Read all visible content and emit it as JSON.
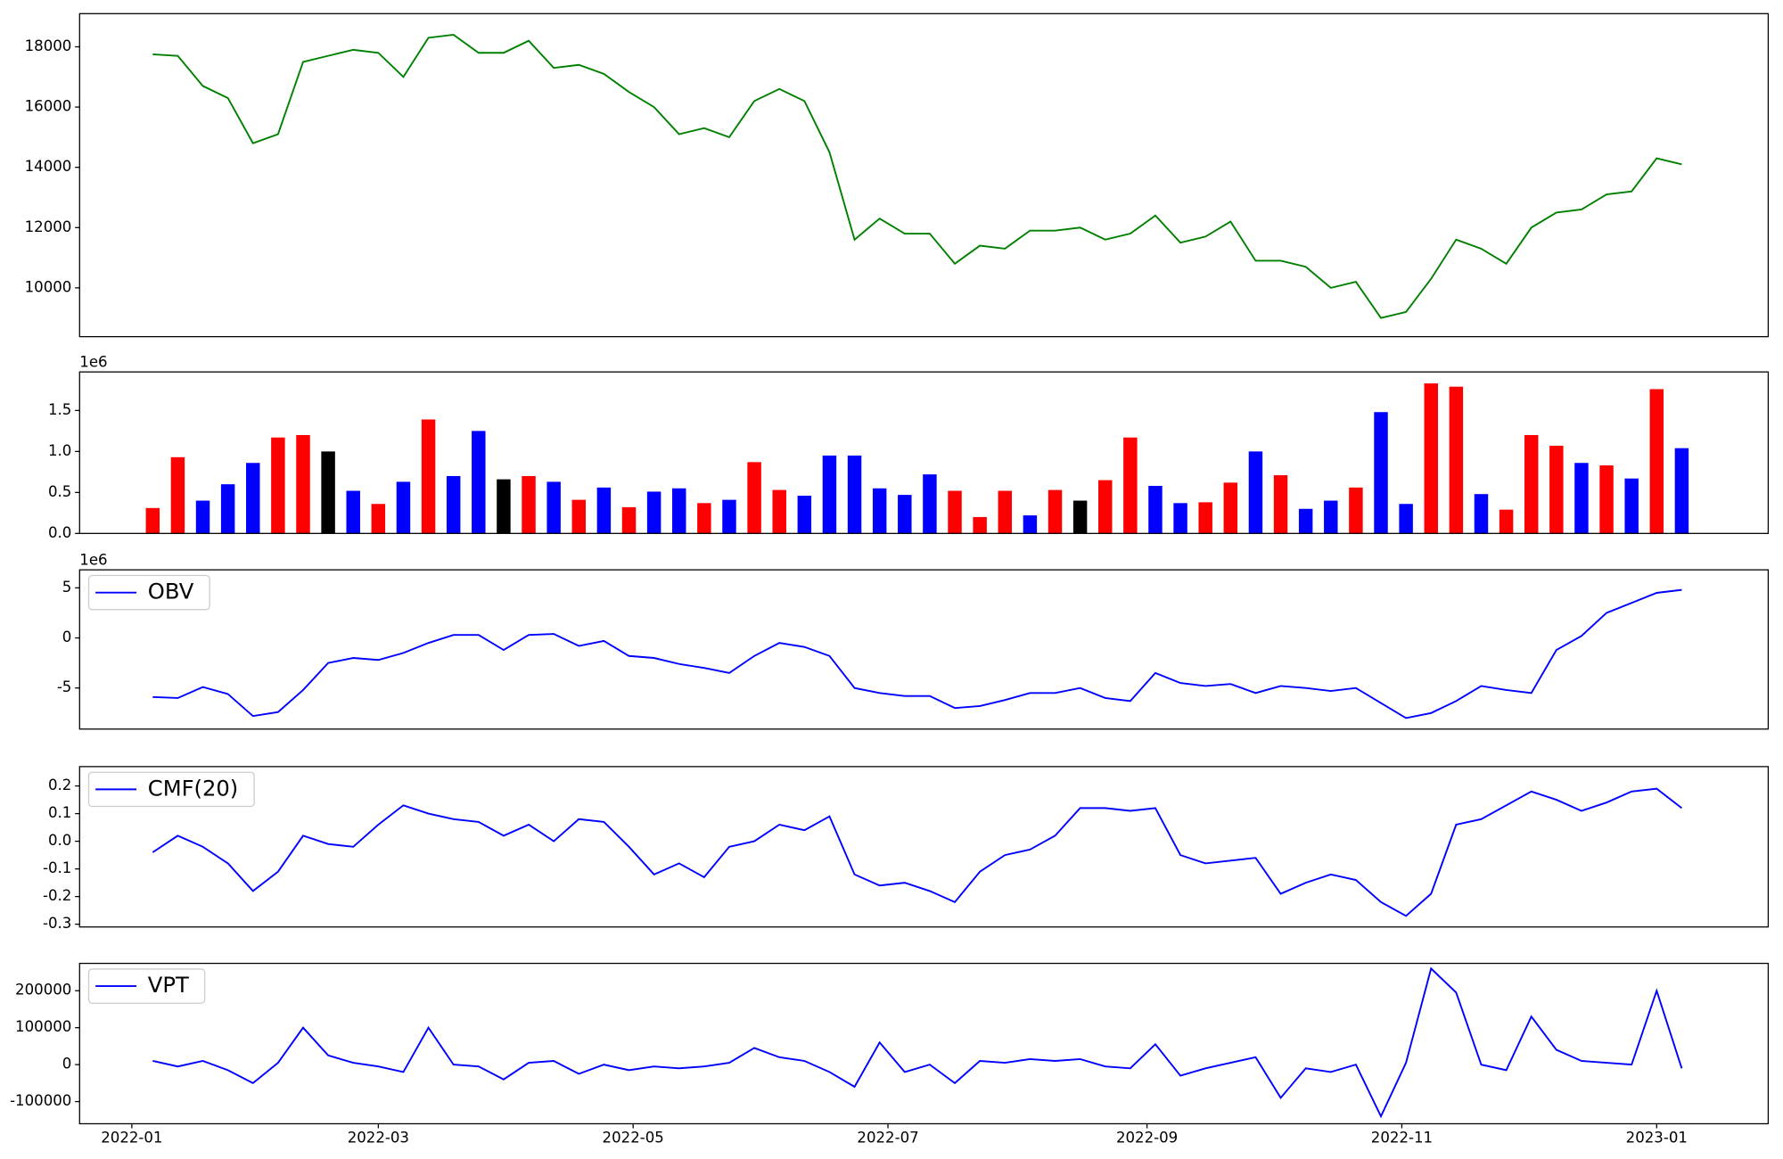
{
  "chart_data": [
    {
      "type": "line",
      "x": [
        5,
        11,
        17,
        23,
        29,
        35,
        41,
        47,
        53,
        59,
        65,
        71,
        77,
        83,
        89,
        95,
        101,
        107,
        113,
        119,
        125,
        131,
        137,
        143,
        149,
        155,
        161,
        167,
        173,
        179,
        185,
        191,
        197,
        203,
        209,
        215,
        221,
        227,
        233,
        239,
        245,
        251,
        257,
        263,
        269,
        275,
        281,
        287,
        293,
        299,
        305,
        311,
        317,
        323,
        329,
        335,
        341,
        347,
        353,
        359,
        365,
        371
      ],
      "xlim": [
        -12.5,
        391.7
      ],
      "ylim": [
        8380,
        19100
      ],
      "yticks": [
        10000,
        12000,
        14000,
        16000,
        18000
      ],
      "series": [
        {
          "color": "#008000",
          "values": [
            17750,
            17700,
            16700,
            16300,
            14800,
            15100,
            17500,
            17700,
            17900,
            17800,
            17000,
            18300,
            18400,
            17800,
            17800,
            18200,
            17300,
            17400,
            17100,
            16500,
            16000,
            15100,
            15300,
            15000,
            16200,
            16600,
            16200,
            14500,
            11600,
            12300,
            11800,
            11800,
            10800,
            11400,
            11300,
            11900,
            11900,
            12000,
            11600,
            11800,
            12400,
            11500,
            11700,
            12200,
            10900,
            10900,
            10700,
            10000,
            10200,
            9000,
            9200,
            10300,
            11600,
            11300,
            10800,
            12000,
            12500,
            12600,
            13100,
            13200,
            14300,
            14100
          ]
        }
      ]
    },
    {
      "type": "bar",
      "x": [
        5,
        11,
        17,
        23,
        29,
        35,
        41,
        47,
        53,
        59,
        65,
        71,
        77,
        83,
        89,
        95,
        101,
        107,
        113,
        119,
        125,
        131,
        137,
        143,
        149,
        155,
        161,
        167,
        173,
        179,
        185,
        191,
        197,
        203,
        209,
        215,
        221,
        227,
        233,
        239,
        245,
        251,
        257,
        263,
        269,
        275,
        281,
        287,
        293,
        299,
        305,
        311,
        317,
        323,
        329,
        335,
        341,
        347,
        353,
        359,
        365,
        371
      ],
      "xlim": [
        -12.5,
        391.7
      ],
      "ylim": [
        0,
        1.97
      ],
      "yticks": [
        {
          "value": 0,
          "label": "0.0"
        },
        0.5,
        {
          "value": 1,
          "label": "1.0"
        },
        1.5
      ],
      "y_offset_text": "1e6",
      "series": [
        {
          "values": [
            0.31,
            0.93,
            0.4,
            0.6,
            0.86,
            1.17,
            1.2,
            1.0,
            0.52,
            0.36,
            0.63,
            1.39,
            0.7,
            1.25,
            0.66,
            0.7,
            0.63,
            0.41,
            0.56,
            0.32,
            0.51,
            0.55,
            0.37,
            0.41,
            0.87,
            0.53,
            0.46,
            0.95,
            0.95,
            0.55,
            0.47,
            0.72,
            0.52,
            0.2,
            0.52,
            0.22,
            0.53,
            0.4,
            0.65,
            1.17,
            0.58,
            0.37,
            0.38,
            0.62,
            1.0,
            0.71,
            0.3,
            0.4,
            0.56,
            1.48,
            0.36,
            1.83,
            1.79,
            0.48,
            0.29,
            1.2,
            1.07,
            0.86,
            0.83,
            0.67,
            1.76,
            1.04
          ],
          "colors": [
            "red",
            "red",
            "blue",
            "blue",
            "blue",
            "red",
            "red",
            "black",
            "blue",
            "red",
            "blue",
            "red",
            "blue",
            "blue",
            "black",
            "red",
            "blue",
            "red",
            "blue",
            "red",
            "blue",
            "blue",
            "red",
            "blue",
            "red",
            "red",
            "blue",
            "blue",
            "blue",
            "blue",
            "blue",
            "blue",
            "red",
            "red",
            "red",
            "blue",
            "red",
            "black",
            "red",
            "red",
            "blue",
            "blue",
            "red",
            "red",
            "blue",
            "red",
            "blue",
            "blue",
            "red",
            "blue",
            "blue",
            "red",
            "red",
            "blue",
            "red",
            "red",
            "red",
            "blue",
            "red",
            "blue",
            "red",
            "blue"
          ]
        }
      ]
    },
    {
      "type": "line",
      "x": [
        5,
        11,
        17,
        23,
        29,
        35,
        41,
        47,
        53,
        59,
        65,
        71,
        77,
        83,
        89,
        95,
        101,
        107,
        113,
        119,
        125,
        131,
        137,
        143,
        149,
        155,
        161,
        167,
        173,
        179,
        185,
        191,
        197,
        203,
        209,
        215,
        221,
        227,
        233,
        239,
        245,
        251,
        257,
        263,
        269,
        275,
        281,
        287,
        293,
        299,
        305,
        311,
        317,
        323,
        329,
        335,
        341,
        347,
        353,
        359,
        365,
        371
      ],
      "xlim": [
        -12.5,
        391.7
      ],
      "ylim": [
        -9.1,
        6.8
      ],
      "yticks": [
        -5,
        0,
        5
      ],
      "y_offset_text": "1e6",
      "legend": "upper left",
      "series": [
        {
          "name": "OBV",
          "color": "#0000ff",
          "values": [
            -5.9,
            -6.0,
            -4.9,
            -5.6,
            -7.8,
            -7.4,
            -5.2,
            -2.5,
            -2.0,
            -2.2,
            -1.5,
            -0.5,
            0.3,
            0.3,
            -1.2,
            0.3,
            0.4,
            -0.8,
            -0.3,
            -1.8,
            -2.0,
            -2.6,
            -3.0,
            -3.5,
            -1.8,
            -0.5,
            -0.9,
            -1.8,
            -5.0,
            -5.5,
            -5.8,
            -5.8,
            -7.0,
            -6.8,
            -6.2,
            -5.5,
            -5.5,
            -5.0,
            -6.0,
            -6.3,
            -3.5,
            -4.5,
            -4.8,
            -4.6,
            -5.5,
            -4.8,
            -5.0,
            -5.3,
            -5.0,
            -6.5,
            -8.0,
            -7.5,
            -6.3,
            -4.8,
            -5.2,
            -5.5,
            -1.2,
            0.2,
            2.5,
            3.5,
            4.5,
            4.8
          ]
        }
      ]
    },
    {
      "type": "line",
      "x": [
        5,
        11,
        17,
        23,
        29,
        35,
        41,
        47,
        53,
        59,
        65,
        71,
        77,
        83,
        89,
        95,
        101,
        107,
        113,
        119,
        125,
        131,
        137,
        143,
        149,
        155,
        161,
        167,
        173,
        179,
        185,
        191,
        197,
        203,
        209,
        215,
        221,
        227,
        233,
        239,
        245,
        251,
        257,
        263,
        269,
        275,
        281,
        287,
        293,
        299,
        305,
        311,
        317,
        323,
        329,
        335,
        341,
        347,
        353,
        359,
        365,
        371
      ],
      "xlim": [
        -12.5,
        391.7
      ],
      "ylim": [
        -0.31,
        0.27
      ],
      "yticks": [
        -0.3,
        -0.2,
        -0.1,
        {
          "value": 0,
          "label": "0.0"
        },
        0.1,
        0.2
      ],
      "legend": "upper left",
      "series": [
        {
          "name": "CMF(20)",
          "color": "#0000ff",
          "values": [
            -0.04,
            0.02,
            -0.02,
            -0.08,
            -0.18,
            -0.11,
            0.02,
            -0.01,
            -0.02,
            0.06,
            0.13,
            0.1,
            0.08,
            0.07,
            0.02,
            0.06,
            0.0,
            0.08,
            0.07,
            -0.02,
            -0.12,
            -0.08,
            -0.13,
            -0.02,
            0.0,
            0.06,
            0.04,
            0.09,
            -0.12,
            -0.16,
            -0.15,
            -0.18,
            -0.22,
            -0.11,
            -0.05,
            -0.03,
            0.02,
            0.12,
            0.12,
            0.11,
            0.12,
            -0.05,
            -0.08,
            -0.07,
            -0.06,
            -0.19,
            -0.15,
            -0.12,
            -0.14,
            -0.22,
            -0.27,
            -0.19,
            0.06,
            0.08,
            0.13,
            0.18,
            0.15,
            0.11,
            0.14,
            0.18,
            0.19,
            0.12
          ]
        }
      ]
    },
    {
      "type": "line",
      "x": [
        5,
        11,
        17,
        23,
        29,
        35,
        41,
        47,
        53,
        59,
        65,
        71,
        77,
        83,
        89,
        95,
        101,
        107,
        113,
        119,
        125,
        131,
        137,
        143,
        149,
        155,
        161,
        167,
        173,
        179,
        185,
        191,
        197,
        203,
        209,
        215,
        221,
        227,
        233,
        239,
        245,
        251,
        257,
        263,
        269,
        275,
        281,
        287,
        293,
        299,
        305,
        311,
        317,
        323,
        329,
        335,
        341,
        347,
        353,
        359,
        365,
        371
      ],
      "xlim": [
        -12.5,
        391.7
      ],
      "ylim": [
        -160000,
        274000
      ],
      "yticks": [
        -100000,
        0,
        100000,
        200000
      ],
      "legend": "upper left",
      "xticks": [
        {
          "value": 0,
          "label": "2022-01"
        },
        {
          "value": 59,
          "label": "2022-03"
        },
        {
          "value": 120,
          "label": "2022-05"
        },
        {
          "value": 181,
          "label": "2022-07"
        },
        {
          "value": 243,
          "label": "2022-09"
        },
        {
          "value": 304,
          "label": "2022-11"
        },
        {
          "value": 365,
          "label": "2023-01"
        }
      ],
      "series": [
        {
          "name": "VPT",
          "color": "#0000ff",
          "values": [
            10000,
            -5000,
            10000,
            -15000,
            -50000,
            5000,
            100000,
            25000,
            5000,
            -5000,
            -20000,
            100000,
            0,
            -5000,
            -40000,
            5000,
            10000,
            -25000,
            0,
            -15000,
            -5000,
            -10000,
            -5000,
            5000,
            45000,
            20000,
            10000,
            -20000,
            -60000,
            60000,
            -20000,
            0,
            -50000,
            10000,
            5000,
            15000,
            10000,
            15000,
            -5000,
            -10000,
            55000,
            -30000,
            -10000,
            5000,
            20000,
            -90000,
            -10000,
            -20000,
            0,
            -140000,
            5000,
            260000,
            195000,
            0,
            -15000,
            130000,
            40000,
            10000,
            5000,
            0,
            200000,
            -10000
          ]
        }
      ]
    }
  ]
}
